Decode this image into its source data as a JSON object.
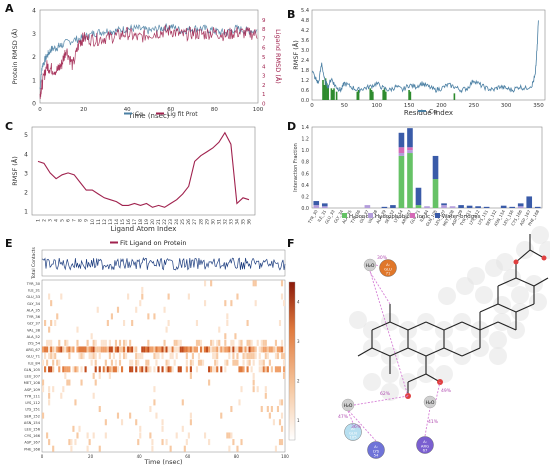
{
  "panel_letters": [
    "A",
    "B",
    "C",
    "D",
    "E",
    "F"
  ],
  "chart_data": [
    {
      "id": "A",
      "type": "line",
      "xlabel": "Time (nsec)",
      "ylabel": "Protein RMSD (Å)",
      "y2label": "Ligand RMSD (Å)",
      "xlim": [
        0,
        100
      ],
      "ylim": [
        0,
        4
      ],
      "y2lim": [
        0,
        10
      ],
      "xticks": [
        0,
        20,
        40,
        60,
        80,
        100
      ],
      "yticks": [
        0,
        1,
        2,
        3,
        4
      ],
      "y2ticks": [
        0,
        1,
        2,
        3,
        4,
        5,
        6,
        7,
        8,
        9
      ],
      "legend_position": "bottom",
      "series": [
        {
          "name": "Cα",
          "color": "#4a7fa3",
          "x": [
            0,
            1,
            3,
            5,
            8,
            10,
            15,
            20,
            25,
            30,
            35,
            40,
            45,
            50,
            55,
            60,
            65,
            70,
            75,
            80,
            85,
            90,
            95,
            100
          ],
          "values": [
            0.6,
            1.6,
            2.0,
            2.3,
            2.4,
            2.5,
            2.7,
            2.8,
            3.0,
            3.1,
            3.1,
            3.2,
            3.2,
            3.1,
            3.2,
            3.3,
            3.1,
            3.2,
            3.2,
            3.1,
            3.0,
            3.2,
            3.1,
            3.1
          ]
        },
        {
          "name": "Lig fit Prot",
          "color": "#a0224e",
          "axis": "right",
          "x": [
            0,
            1,
            3,
            5,
            8,
            10,
            12,
            15,
            18,
            20,
            25,
            30,
            35,
            40,
            45,
            50,
            55,
            60,
            65,
            70,
            75,
            80,
            85,
            90,
            95,
            100
          ],
          "values": [
            1.0,
            2.0,
            4.0,
            3.7,
            3.5,
            4.2,
            5.8,
            4.0,
            6.5,
            7.0,
            6.8,
            7.0,
            7.2,
            7.5,
            7.0,
            7.4,
            7.6,
            7.8,
            7.3,
            7.5,
            7.4,
            7.6,
            7.3,
            7.6,
            7.5,
            7.4
          ]
        }
      ]
    },
    {
      "id": "B",
      "type": "line",
      "xlabel": "Residue Index",
      "ylabel": "RMSF (Å)",
      "xlim": [
        0,
        360
      ],
      "ylim": [
        0,
        5.4
      ],
      "xticks": [
        0,
        50,
        100,
        150,
        200,
        250,
        300,
        350
      ],
      "yticks": [
        0.0,
        0.6,
        1.2,
        1.8,
        2.4,
        3.0,
        3.6,
        4.2,
        4.8,
        5.4
      ],
      "legend_position": "bottom",
      "series": [
        {
          "name": "Cα",
          "color": "#4a7fa3",
          "x": [
            0,
            5,
            10,
            15,
            20,
            25,
            30,
            35,
            40,
            45,
            50,
            60,
            70,
            80,
            90,
            100,
            110,
            120,
            130,
            140,
            150,
            160,
            170,
            180,
            190,
            200,
            210,
            220,
            230,
            240,
            250,
            260,
            270,
            280,
            290,
            300,
            310,
            320,
            330,
            340,
            345,
            348,
            350
          ],
          "values": [
            1.8,
            1.3,
            1.0,
            2.2,
            1.1,
            0.8,
            1.3,
            0.9,
            0.7,
            0.6,
            1.0,
            0.8,
            0.6,
            0.7,
            0.8,
            1.0,
            0.7,
            0.6,
            0.8,
            0.6,
            0.9,
            0.8,
            1.0,
            0.8,
            0.6,
            0.7,
            0.9,
            0.8,
            0.6,
            0.7,
            1.2,
            0.9,
            0.7,
            0.6,
            0.8,
            0.7,
            0.6,
            0.8,
            0.7,
            0.9,
            1.5,
            3.2,
            5.0
          ]
        }
      ],
      "contact_bars": {
        "color": "#2e8b2e",
        "x": [
          17,
          19,
          21,
          23,
          25,
          30,
          32,
          34,
          38,
          70,
          72,
          90,
          92,
          94,
          110,
          112,
          114,
          150,
          152,
          220
        ],
        "heights": [
          1.2,
          0.9,
          1.3,
          1.0,
          0.8,
          0.7,
          0.6,
          0.7,
          0.5,
          0.5,
          0.6,
          0.7,
          0.6,
          0.5,
          0.6,
          0.7,
          0.5,
          0.6,
          0.5,
          0.4
        ]
      }
    },
    {
      "id": "C",
      "type": "line",
      "xlabel": "Ligand Atom Index",
      "ylabel": "RMSF (Å)",
      "xlim": [
        1,
        36
      ],
      "ylim": [
        0.8,
        5.4
      ],
      "yticks": [
        1,
        2,
        3,
        4,
        5
      ],
      "xticks": [
        1,
        2,
        3,
        4,
        5,
        6,
        7,
        8,
        9,
        10,
        11,
        12,
        13,
        14,
        15,
        16,
        17,
        18,
        19,
        20,
        21,
        22,
        23,
        24,
        25,
        26,
        27,
        28,
        29,
        30,
        31,
        32,
        33,
        34,
        35,
        36
      ],
      "series": [
        {
          "name": "",
          "color": "#a0224e",
          "x": [
            1,
            2,
            3,
            4,
            5,
            6,
            7,
            8,
            9,
            10,
            11,
            12,
            13,
            14,
            15,
            16,
            17,
            18,
            19,
            20,
            21,
            22,
            23,
            24,
            25,
            26,
            27,
            28,
            29,
            30,
            31,
            32,
            33,
            34,
            35,
            36
          ],
          "values": [
            3.6,
            3.5,
            3.0,
            2.7,
            2.9,
            3.0,
            2.9,
            2.5,
            2.1,
            2.1,
            1.9,
            1.7,
            1.6,
            1.5,
            1.3,
            1.3,
            1.4,
            1.3,
            1.4,
            1.2,
            1.3,
            1.2,
            1.4,
            1.6,
            1.9,
            2.3,
            3.6,
            3.9,
            4.1,
            4.3,
            4.6,
            5.1,
            4.5,
            1.4,
            1.7,
            1.6
          ]
        }
      ]
    },
    {
      "id": "D",
      "type": "bar",
      "ylabel": "Interaction Fraction",
      "ylim": [
        0,
        1.4
      ],
      "yticks": [
        0.0,
        0.2,
        0.4,
        0.6,
        0.8,
        1.0,
        1.2,
        1.4
      ],
      "legend_position": "bottom",
      "categories": [
        "TYR_30",
        "ILE_31",
        "GLU_33",
        "GLY_34",
        "ALA_35",
        "TYR_36",
        "GLY_37",
        "VAL_38",
        "ALA_39",
        "SER_52",
        "LYS_54",
        "ARG_67",
        "GLU_71",
        "ILE_84",
        "GLN_105",
        "LEU_107",
        "MET_108",
        "ASP_109",
        "TYR_111",
        "LYS_112",
        "LYS_151",
        "SER_152",
        "ASN_154",
        "LEU_156",
        "CYS_166",
        "ASP_167",
        "PHE_168"
      ],
      "series": [
        {
          "name": "H-bonds",
          "color": "#66c266",
          "values": [
            0,
            0,
            0,
            0,
            0,
            0,
            0,
            0,
            0,
            0,
            0.9,
            0.95,
            0.05,
            0,
            0.5,
            0,
            0,
            0,
            0,
            0,
            0,
            0,
            0,
            0,
            0,
            0,
            0
          ]
        },
        {
          "name": "Hydrophobic",
          "color": "#b39ddb",
          "values": [
            0.05,
            0.03,
            0,
            0,
            0,
            0,
            0.05,
            0,
            0,
            0,
            0.05,
            0.05,
            0,
            0.03,
            0,
            0.05,
            0.03,
            0,
            0,
            0,
            0,
            0,
            0,
            0,
            0.03,
            0,
            0
          ]
        },
        {
          "name": "Ionic",
          "color": "#d46ab6",
          "values": [
            0,
            0,
            0,
            0,
            0,
            0,
            0,
            0,
            0,
            0,
            0.1,
            0.05,
            0,
            0,
            0,
            0,
            0,
            0,
            0,
            0,
            0,
            0,
            0,
            0,
            0,
            0,
            0
          ]
        },
        {
          "name": "Water bridges",
          "color": "#3a5ba8",
          "values": [
            0.07,
            0.05,
            0,
            0,
            0,
            0,
            0,
            0,
            0.02,
            0.05,
            0.25,
            0.33,
            0.3,
            0,
            0.4,
            0.03,
            0,
            0.05,
            0.04,
            0.03,
            0.02,
            0,
            0.04,
            0.02,
            0.05,
            0.2,
            0.02
          ]
        }
      ]
    },
    {
      "id": "E",
      "type": "heatmap",
      "title": "Fit Ligand on Protein",
      "title_color": "#a0224e",
      "xlabel": "Time (nsec)",
      "ylabel_top": "Total Contacts",
      "rows": [
        "TYR_30",
        "ILE_31",
        "GLU_33",
        "GLY_34",
        "ALA_35",
        "TYR_36",
        "GLY_37",
        "VAL_38",
        "ALA_52",
        "LYS_54",
        "ARG_67",
        "GLU_71",
        "ILE_84",
        "GLN_105",
        "LEU_107",
        "MET_108",
        "ASP_109",
        "TYR_111",
        "LYS_112",
        "LYS_151",
        "SER_152",
        "ASN_154",
        "LEU_156",
        "CYS_166",
        "ASP_167",
        "PHE_168"
      ],
      "row_density": [
        0.05,
        0.02,
        0.08,
        0.03,
        0.02,
        0.03,
        0.12,
        0.06,
        0.02,
        0.35,
        0.95,
        0.4,
        0.3,
        0.55,
        0.05,
        0.08,
        0.04,
        0.03,
        0.06,
        0.05,
        0.04,
        0.08,
        0.1,
        0.12,
        0.1,
        0.05
      ],
      "xlim": [
        0,
        100
      ],
      "colorbar_ticks": [
        "1",
        "2",
        "3",
        "4"
      ],
      "topline_color": "#1f3f80"
    },
    {
      "id": "F",
      "type": "diagram",
      "labels": {
        "water1": "H₂O",
        "water2": "H₂O",
        "water3": "H₂O",
        "glu": {
          "name": "GLU",
          "num": "71"
        },
        "gln": {
          "name": "GLN",
          "num": "105"
        },
        "lys": {
          "name": "LYS",
          "num": "54"
        },
        "arg": {
          "name": "ARG",
          "num": "67"
        },
        "res_prefix": "A:",
        "pct_glu": "30%",
        "pct_gln": "47%",
        "pct_lys1": "62%",
        "pct_lys2": "36%",
        "pct_arg1": "41%",
        "pct_arg2": "49%"
      }
    }
  ]
}
